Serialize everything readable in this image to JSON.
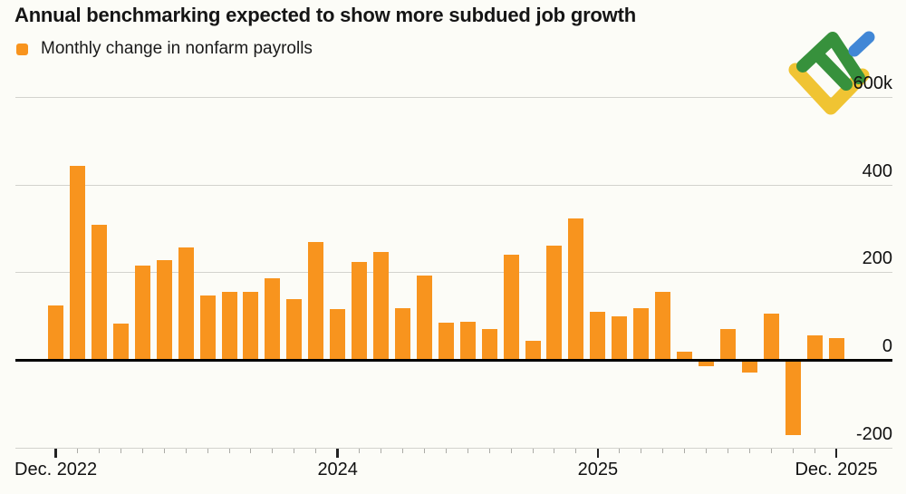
{
  "title": "Annual benchmarking expected to show more subdued job growth",
  "legend": {
    "label": "Monthly change in nonfarm payrolls",
    "swatch_color": "#F8941E"
  },
  "watermark": {
    "name": "litefinance-logo",
    "colors": {
      "green": "#37913C",
      "blue": "#4187D6",
      "yellow": "#F0C433"
    }
  },
  "colors": {
    "background": "#FCFCF7",
    "bar": "#F8941E",
    "gridline": "#D3D3CE",
    "zero_line": "#000000",
    "axis_line": "#C8C8C3",
    "minor_tick": "#ABABA6",
    "major_tick": "#222222",
    "text": "#111111"
  },
  "y_axis": {
    "range": [
      -200,
      600
    ],
    "ticks": [
      {
        "value": 600,
        "label": "600k"
      },
      {
        "value": 400,
        "label": "400"
      },
      {
        "value": 200,
        "label": "200"
      },
      {
        "value": 0,
        "label": "0"
      },
      {
        "value": -200,
        "label": "-200"
      }
    ]
  },
  "x_axis": {
    "major_ticks": [
      {
        "month_index": 0,
        "label": "Dec. 2022"
      },
      {
        "month_index": 13,
        "label": "2024"
      },
      {
        "month_index": 25,
        "label": "2025"
      },
      {
        "month_index": 36,
        "label": "Dec. 2025"
      }
    ]
  },
  "chart_data": {
    "type": "bar",
    "title": "Annual benchmarking expected to show more subdued job growth",
    "y_unit": "k",
    "ylim": [
      -200,
      600
    ],
    "grid": "horizontal",
    "legend_position": "top-left",
    "categories": [
      "Dec 2022",
      "Jan 2023",
      "Feb 2023",
      "Mar 2023",
      "Apr 2023",
      "May 2023",
      "Jun 2023",
      "Jul 2023",
      "Aug 2023",
      "Sep 2023",
      "Oct 2023",
      "Nov 2023",
      "Dec 2023",
      "Jan 2024",
      "Feb 2024",
      "Mar 2024",
      "Apr 2024",
      "May 2024",
      "Jun 2024",
      "Jul 2024",
      "Aug 2024",
      "Sep 2024",
      "Oct 2024",
      "Nov 2024",
      "Dec 2024",
      "Jan 2025",
      "Feb 2025",
      "Mar 2025",
      "Apr 2025",
      "May 2025",
      "Jun 2025",
      "Jul 2025",
      "Aug 2025",
      "Sep 2025",
      "Oct 2025",
      "Nov 2025",
      "Dec 2025"
    ],
    "series": [
      {
        "name": "Monthly change in nonfarm payrolls",
        "color": "#F8941E",
        "values": [
          125,
          443,
          307,
          83,
          216,
          227,
          257,
          147,
          155,
          155,
          187,
          139,
          268,
          116,
          223,
          246,
          117,
          192,
          85,
          87,
          70,
          240,
          43,
          260,
          323,
          110,
          100,
          118,
          156,
          19,
          -14,
          70,
          -28,
          106,
          -172,
          56,
          49
        ]
      }
    ]
  }
}
